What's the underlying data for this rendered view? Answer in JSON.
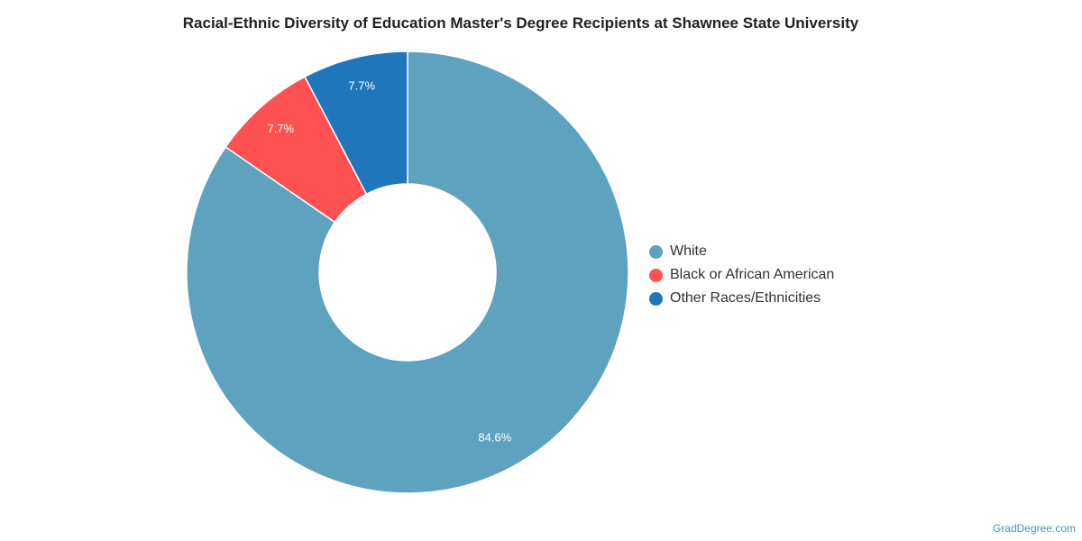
{
  "chart_data": {
    "type": "pie",
    "title": "Racial-Ethnic Diversity of Education Master's Degree Recipients at Shawnee State University",
    "donut": true,
    "legend_position": "right",
    "slices": [
      {
        "label": "White",
        "value": 84.6,
        "display": "84.6%",
        "color": "#5ea2bf"
      },
      {
        "label": "Black or African American",
        "value": 7.7,
        "display": "7.7%",
        "color": "#fe5151"
      },
      {
        "label": "Other Races/Ethnicities",
        "value": 7.7,
        "display": "7.7%",
        "color": "#1f76bb"
      }
    ]
  },
  "watermark": "GradDegree.com"
}
